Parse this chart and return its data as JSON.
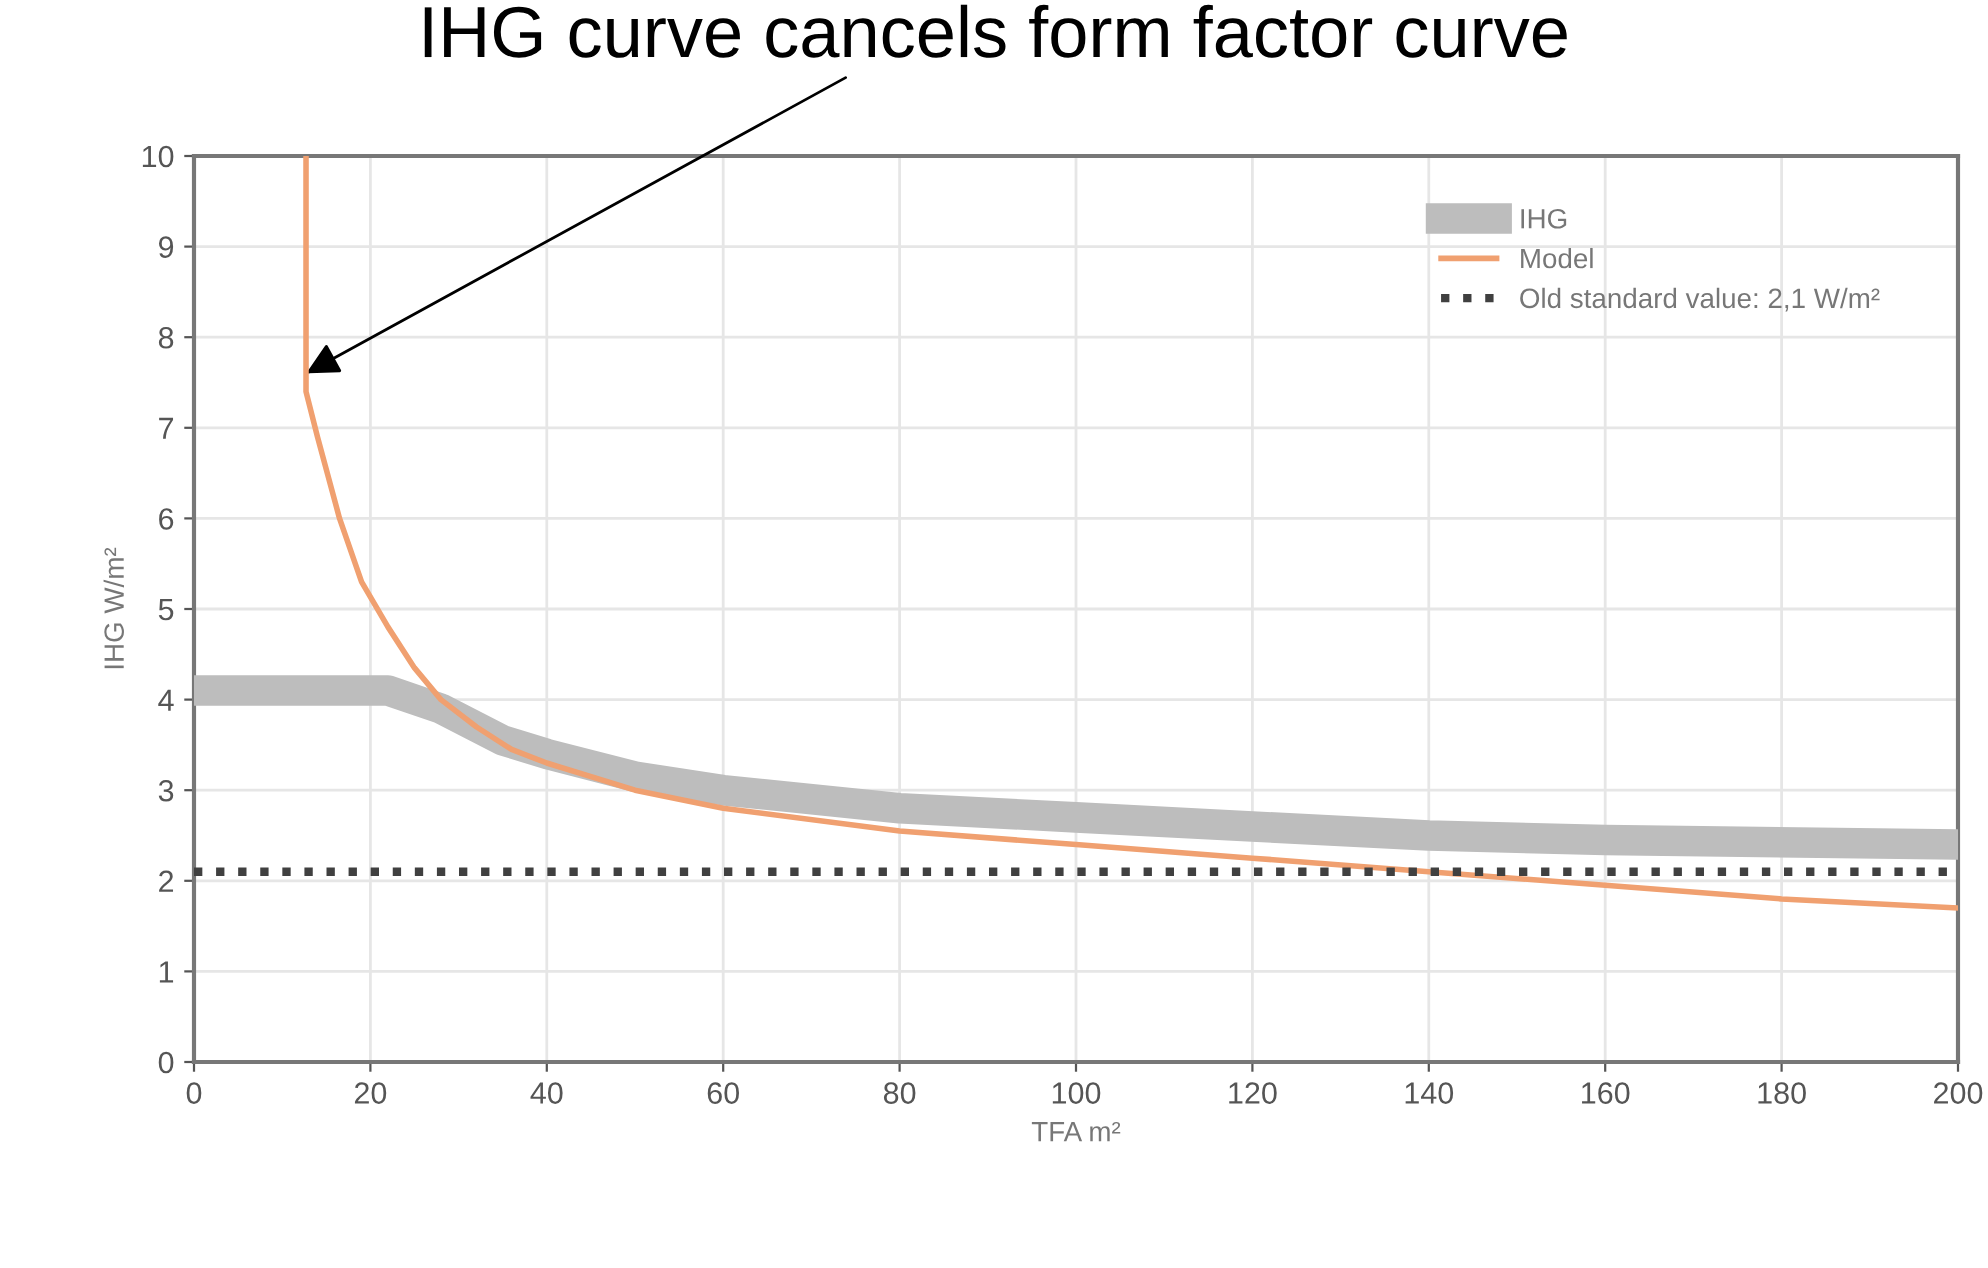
{
  "chart_data": {
    "type": "line",
    "xlabel": "TFA m²",
    "ylabel": "IHG W/m²",
    "xlim": [
      0,
      200
    ],
    "ylim": [
      0,
      10
    ],
    "xticks": [
      0,
      20,
      40,
      60,
      80,
      100,
      120,
      140,
      160,
      180,
      200
    ],
    "yticks": [
      0,
      1,
      2,
      3,
      4,
      5,
      6,
      7,
      8,
      9,
      10
    ],
    "grid": true,
    "legend": "top right",
    "marker": "none",
    "series": [
      {
        "name": "IHG",
        "color": "#bdbdbd",
        "line_style": "solid",
        "x": [
          0,
          22,
          28,
          35,
          40,
          50,
          60,
          80,
          100,
          120,
          140,
          160,
          200
        ],
        "values": [
          4.1,
          4.1,
          3.9,
          3.55,
          3.4,
          3.15,
          3.0,
          2.8,
          2.7,
          2.6,
          2.5,
          2.45,
          2.4
        ]
      },
      {
        "name": "Model",
        "color": "#f0a070",
        "line_style": "solid",
        "x": [
          12.7,
          12.7,
          14,
          16.5,
          19,
          22,
          25,
          28,
          32,
          36,
          40,
          50,
          60,
          80,
          100,
          120,
          140,
          160,
          180,
          200
        ],
        "values": [
          10,
          7.4,
          6.9,
          6.0,
          5.3,
          4.8,
          4.35,
          4.0,
          3.7,
          3.45,
          3.3,
          3.0,
          2.8,
          2.55,
          2.4,
          2.25,
          2.1,
          1.95,
          1.8,
          1.7
        ]
      }
    ],
    "ref_lines": [
      {
        "axis": "y",
        "value": 2.1,
        "label": "Old standard value: 2,1 W/m²",
        "color": "#404040",
        "line_style": "dotted"
      }
    ],
    "annotations": [
      {
        "text": "IHG curve cancels form factor curve",
        "x": 12.7,
        "y": 7.6
      }
    ]
  }
}
